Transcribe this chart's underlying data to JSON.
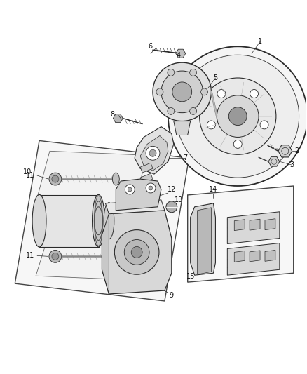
{
  "background_color": "#ffffff",
  "fig_width": 4.38,
  "fig_height": 5.33,
  "dpi": 100,
  "line_color": "#2a2a2a",
  "text_color": "#111111",
  "label_fontsize": 7.0
}
